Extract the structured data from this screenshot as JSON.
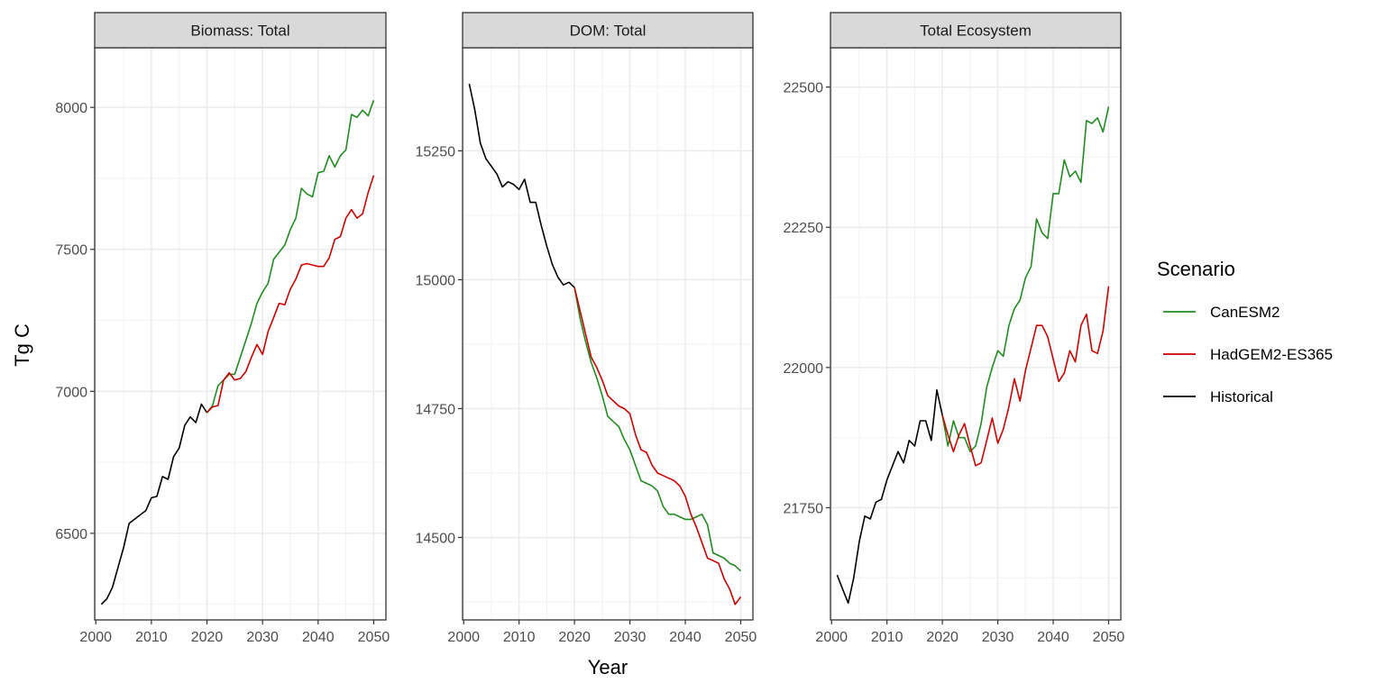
{
  "chart_data": {
    "type": "line",
    "xlabel": "Year",
    "ylabel": "Tg C",
    "legend": {
      "title": "Scenario",
      "placement": "right",
      "entries": [
        {
          "name": "CanESM2",
          "color": "#228B22"
        },
        {
          "name": "HadGEM2-ES365",
          "color": "#CC0000"
        },
        {
          "name": "Historical",
          "color": "#000000"
        }
      ]
    },
    "grid": true,
    "panels": [
      {
        "title": "Biomass: Total",
        "xlim": [
          1999.8,
          2052.2
        ],
        "ylim": [
          6195,
          8210
        ],
        "xticks": [
          2000,
          2010,
          2020,
          2030,
          2040,
          2050
        ],
        "xtick_labels": [
          "2000",
          "2010",
          "2020",
          "2030",
          "2040",
          "2050"
        ],
        "yticks": [
          6500,
          7000,
          7500,
          8000
        ],
        "ytick_labels": [
          "6500",
          "7000",
          "7500",
          "8000"
        ],
        "series": [
          {
            "name": "Historical",
            "x": [
              2001,
              2002,
              2003,
              2004,
              2005,
              2006,
              2007,
              2008,
              2009,
              2010,
              2011,
              2012,
              2013,
              2014,
              2015,
              2016,
              2017,
              2018,
              2019,
              2020
            ],
            "y": [
              6250,
              6270,
              6310,
              6380,
              6450,
              6535,
              6550,
              6565,
              6580,
              6625,
              6630,
              6700,
              6690,
              6770,
              6800,
              6880,
              6910,
              6890,
              6955,
              6925
            ]
          },
          {
            "name": "CanESM2",
            "x": [
              2020,
              2021,
              2022,
              2023,
              2024,
              2025,
              2026,
              2027,
              2028,
              2029,
              2030,
              2031,
              2032,
              2033,
              2034,
              2035,
              2036,
              2037,
              2038,
              2039,
              2040,
              2041,
              2042,
              2043,
              2044,
              2045,
              2046,
              2047,
              2048,
              2049,
              2050
            ],
            "y": [
              6925,
              6950,
              7020,
              7040,
              7060,
              7060,
              7120,
              7180,
              7240,
              7310,
              7350,
              7380,
              7465,
              7490,
              7515,
              7570,
              7610,
              7715,
              7695,
              7685,
              7770,
              7775,
              7830,
              7790,
              7830,
              7850,
              7975,
              7965,
              7990,
              7970,
              8025
            ]
          },
          {
            "name": "HadGEM2-ES365",
            "x": [
              2020,
              2021,
              2022,
              2023,
              2024,
              2025,
              2026,
              2027,
              2028,
              2029,
              2030,
              2031,
              2032,
              2033,
              2034,
              2035,
              2036,
              2037,
              2038,
              2039,
              2040,
              2041,
              2042,
              2043,
              2044,
              2045,
              2046,
              2047,
              2048,
              2049,
              2050
            ],
            "y": [
              6925,
              6945,
              6950,
              7040,
              7065,
              7040,
              7045,
              7070,
              7120,
              7165,
              7130,
              7210,
              7260,
              7310,
              7305,
              7360,
              7395,
              7445,
              7450,
              7445,
              7440,
              7440,
              7470,
              7535,
              7545,
              7610,
              7640,
              7610,
              7625,
              7700,
              7760
            ]
          }
        ]
      },
      {
        "title": "DOM: Total",
        "xlim": [
          1999.8,
          2052.2
        ],
        "ylim": [
          14340,
          15450
        ],
        "xticks": [
          2000,
          2010,
          2020,
          2030,
          2040,
          2050
        ],
        "xtick_labels": [
          "2000",
          "2010",
          "2020",
          "2030",
          "2040",
          "2050"
        ],
        "yticks": [
          14500,
          14750,
          15000,
          15250
        ],
        "ytick_labels": [
          "14500",
          "14750",
          "15000",
          "15250"
        ],
        "series": [
          {
            "name": "Historical",
            "x": [
              2001,
              2002,
              2003,
              2004,
              2005,
              2006,
              2007,
              2008,
              2009,
              2010,
              2011,
              2012,
              2013,
              2014,
              2015,
              2016,
              2017,
              2018,
              2019,
              2020
            ],
            "y": [
              15380,
              15330,
              15265,
              15235,
              15220,
              15205,
              15180,
              15190,
              15185,
              15175,
              15195,
              15150,
              15150,
              15105,
              15065,
              15030,
              15005,
              14990,
              14995,
              14985
            ]
          },
          {
            "name": "CanESM2",
            "x": [
              2020,
              2021,
              2022,
              2023,
              2024,
              2025,
              2026,
              2027,
              2028,
              2029,
              2030,
              2031,
              2032,
              2033,
              2034,
              2035,
              2036,
              2037,
              2038,
              2039,
              2040,
              2041,
              2042,
              2043,
              2044,
              2045,
              2046,
              2047,
              2048,
              2049,
              2050
            ],
            "y": [
              14985,
              14925,
              14880,
              14840,
              14810,
              14775,
              14735,
              14725,
              14715,
              14690,
              14670,
              14640,
              14610,
              14605,
              14600,
              14590,
              14560,
              14545,
              14545,
              14540,
              14535,
              14535,
              14540,
              14545,
              14525,
              14470,
              14465,
              14460,
              14450,
              14445,
              14435
            ]
          },
          {
            "name": "HadGEM2-ES365",
            "x": [
              2020,
              2021,
              2022,
              2023,
              2024,
              2025,
              2026,
              2027,
              2028,
              2029,
              2030,
              2031,
              2032,
              2033,
              2034,
              2035,
              2036,
              2037,
              2038,
              2039,
              2040,
              2041,
              2042,
              2043,
              2044,
              2045,
              2046,
              2047,
              2048,
              2049,
              2050
            ],
            "y": [
              14985,
              14940,
              14895,
              14850,
              14830,
              14805,
              14775,
              14765,
              14755,
              14750,
              14740,
              14700,
              14670,
              14665,
              14640,
              14625,
              14620,
              14615,
              14610,
              14600,
              14580,
              14545,
              14520,
              14490,
              14460,
              14455,
              14450,
              14420,
              14400,
              14370,
              14385
            ]
          }
        ]
      },
      {
        "title": "Total Ecosystem",
        "xlim": [
          1999.8,
          2052.2
        ],
        "ylim": [
          21550,
          22570
        ],
        "xticks": [
          2000,
          2010,
          2020,
          2030,
          2040,
          2050
        ],
        "xtick_labels": [
          "2000",
          "2010",
          "2020",
          "2030",
          "2040",
          "2050"
        ],
        "yticks": [
          21750,
          22000,
          22250,
          22500
        ],
        "ytick_labels": [
          "21750",
          "22000",
          "22250",
          "22500"
        ],
        "series": [
          {
            "name": "Historical",
            "x": [
              2001,
              2002,
              2003,
              2004,
              2005,
              2006,
              2007,
              2008,
              2009,
              2010,
              2011,
              2012,
              2013,
              2014,
              2015,
              2016,
              2017,
              2018,
              2019,
              2020
            ],
            "y": [
              21630,
              21605,
              21580,
              21625,
              21690,
              21735,
              21730,
              21760,
              21765,
              21800,
              21825,
              21850,
              21830,
              21870,
              21860,
              21905,
              21905,
              21870,
              21960,
              21915
            ]
          },
          {
            "name": "CanESM2",
            "x": [
              2020,
              2021,
              2022,
              2023,
              2024,
              2025,
              2026,
              2027,
              2028,
              2029,
              2030,
              2031,
              2032,
              2033,
              2034,
              2035,
              2036,
              2037,
              2038,
              2039,
              2040,
              2041,
              2042,
              2043,
              2044,
              2045,
              2046,
              2047,
              2048,
              2049,
              2050
            ],
            "y": [
              21915,
              21860,
              21905,
              21875,
              21875,
              21850,
              21860,
              21900,
              21965,
              22000,
              22030,
              22020,
              22075,
              22105,
              22120,
              22160,
              22180,
              22265,
              22240,
              22230,
              22310,
              22310,
              22370,
              22340,
              22350,
              22330,
              22440,
              22435,
              22445,
              22420,
              22465
            ]
          },
          {
            "name": "HadGEM2-ES365",
            "x": [
              2020,
              2021,
              2022,
              2023,
              2024,
              2025,
              2026,
              2027,
              2028,
              2029,
              2030,
              2031,
              2032,
              2033,
              2034,
              2035,
              2036,
              2037,
              2038,
              2039,
              2040,
              2041,
              2042,
              2043,
              2044,
              2045,
              2046,
              2047,
              2048,
              2049,
              2050
            ],
            "y": [
              21915,
              21880,
              21850,
              21880,
              21900,
              21860,
              21825,
              21830,
              21870,
              21910,
              21865,
              21890,
              21930,
              21980,
              21940,
              21995,
              22035,
              22075,
              22075,
              22055,
              22015,
              21975,
              21990,
              22030,
              22010,
              22075,
              22095,
              22030,
              22025,
              22065,
              22145
            ]
          }
        ]
      }
    ]
  }
}
